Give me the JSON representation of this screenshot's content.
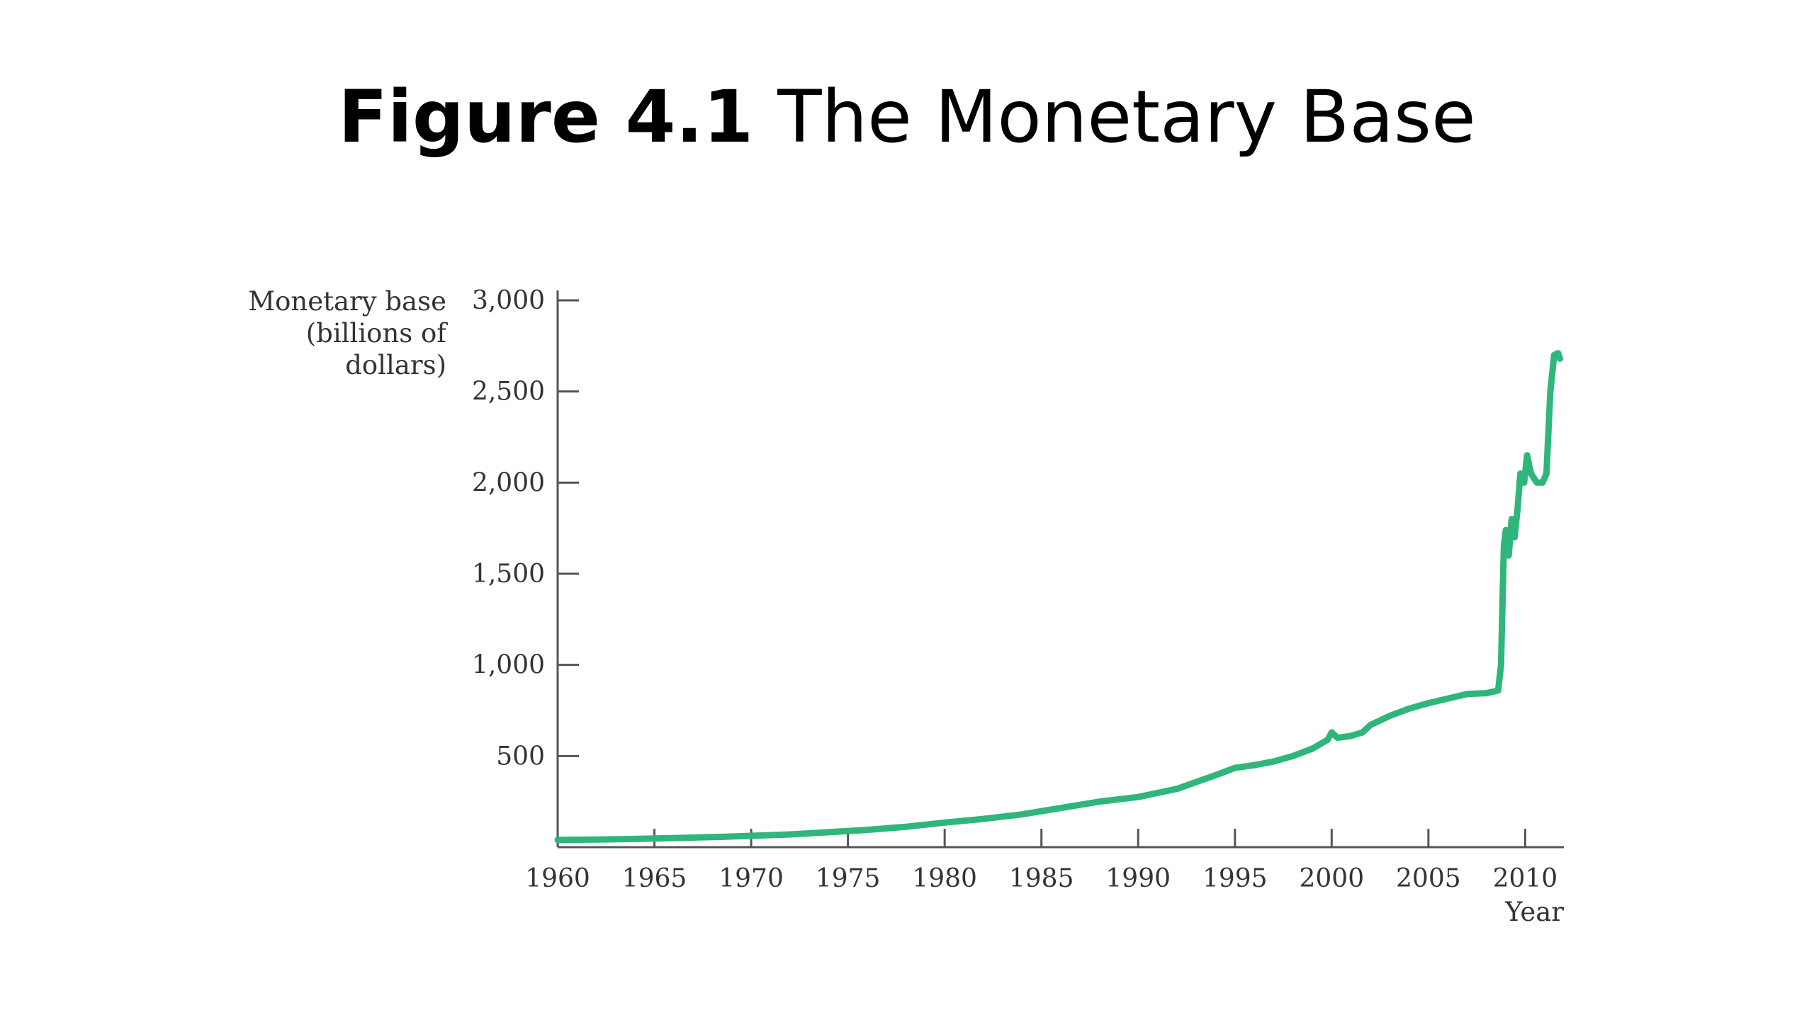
{
  "title": {
    "number": "Figure 4.1",
    "name": "The Monetary Base"
  },
  "chart_data": {
    "type": "line",
    "ylabel_lines": [
      "Monetary base",
      "(billions of",
      "dollars)"
    ],
    "xlabel": "Year",
    "xlim": [
      1960,
      2012
    ],
    "ylim": [
      0,
      3000
    ],
    "x_ticks": [
      1960,
      1965,
      1970,
      1975,
      1980,
      1985,
      1990,
      1995,
      2000,
      2005,
      2010
    ],
    "x_tick_labels": [
      "1960",
      "1965",
      "1970",
      "1975",
      "1980",
      "1985",
      "1990",
      "1995",
      "2000",
      "2005",
      "2010"
    ],
    "y_ticks": [
      500,
      1000,
      1500,
      2000,
      2500,
      3000
    ],
    "y_tick_labels": [
      "500",
      "1,000",
      "1,500",
      "2,000",
      "2,500",
      "3,000"
    ],
    "grid": false,
    "line_color": "#2fb67a",
    "series": [
      {
        "x": [
          1960,
          1962,
          1964,
          1966,
          1968,
          1970,
          1972,
          1974,
          1976,
          1978,
          1980,
          1982,
          1984,
          1986,
          1988,
          1990,
          1992,
          1994,
          1995,
          1996,
          1997,
          1998,
          1999,
          1999.8,
          2000,
          2000.3,
          2001,
          2001.6,
          2002,
          2003,
          2004,
          2005,
          2006,
          2007,
          2008,
          2008.6,
          2008.75,
          2008.9,
          2009,
          2009.15,
          2009.3,
          2009.45,
          2009.6,
          2009.75,
          2009.95,
          2010.1,
          2010.3,
          2010.6,
          2010.9,
          2011.1,
          2011.3,
          2011.5,
          2011.7,
          2011.8
        ],
        "values": [
          40,
          42,
          45,
          50,
          55,
          62,
          70,
          82,
          95,
          112,
          135,
          155,
          180,
          215,
          250,
          275,
          320,
          395,
          435,
          450,
          470,
          500,
          540,
          590,
          630,
          600,
          610,
          630,
          670,
          720,
          760,
          790,
          815,
          840,
          845,
          860,
          1000,
          1650,
          1740,
          1600,
          1800,
          1700,
          1850,
          2050,
          2000,
          2150,
          2050,
          2000,
          2000,
          2050,
          2500,
          2700,
          2710,
          2680
        ]
      }
    ]
  }
}
